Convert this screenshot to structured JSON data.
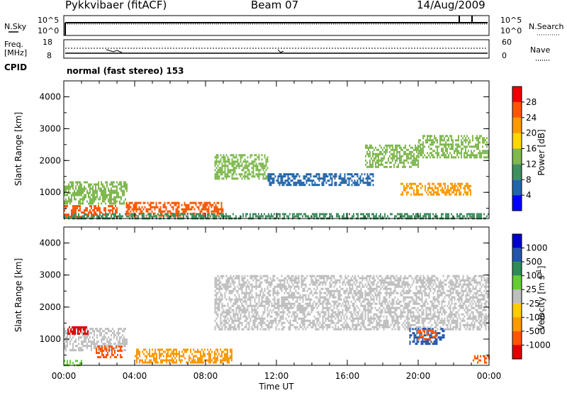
{
  "header": {
    "station": "Pykkvibaer (fitACF)",
    "beam": "Beam 07",
    "date": "14/Aug/2009"
  },
  "summary": {
    "nsky_label": "N.Sky",
    "nsky_ticks": [
      "10^5",
      "10^0"
    ],
    "nsearch_label": "N.Search",
    "nsearch_ticks": [
      "10^5",
      "10^0"
    ],
    "freq_label": "Freq.",
    "freq_unit": "[MHz]",
    "freq_ticks": [
      "18",
      "8"
    ],
    "nave_label": "Nave",
    "nave_ticks": [
      "60",
      "0"
    ],
    "cpid_label": "CPID",
    "cpid_value": "normal (fast stereo) 153"
  },
  "colors": {
    "power_scale": [
      "#0000ff",
      "#2266aa",
      "#3f8f5f",
      "#7fb84f",
      "#ffd700",
      "#ff9900",
      "#ff5500",
      "#ee0000"
    ],
    "velocity_scale": [
      "#e00000",
      "#ff5500",
      "#ff9900",
      "#ffcc00",
      "#bebebe",
      "#66cc33",
      "#2e8b57",
      "#2255aa",
      "#0000cc"
    ],
    "ground_scatter": "#bebebe"
  },
  "chart_data": [
    {
      "type": "heatmap",
      "panel": "power",
      "ylabel": "Slant Range [km]",
      "y_ticks": [
        "1000",
        "2000",
        "3000",
        "4000"
      ],
      "x_ticks": [
        "00:00",
        "04:00",
        "08:00",
        "12:00",
        "16:00",
        "20:00",
        "00:00"
      ],
      "ylim": [
        180,
        4500
      ],
      "colorbar": {
        "label": "Power [dB]",
        "ticks": [
          "4",
          "8",
          "12",
          "16",
          "20",
          "24",
          "28"
        ],
        "range": [
          0,
          30
        ]
      },
      "regions": [
        {
          "t0": 0.0,
          "t1": 3.6,
          "r0": 650,
          "r1": 1350,
          "level": 12
        },
        {
          "t0": 0.0,
          "t1": 3.0,
          "r0": 200,
          "r1": 600,
          "level": 26
        },
        {
          "t0": 3.5,
          "t1": 9.0,
          "r0": 250,
          "r1": 700,
          "level": 24
        },
        {
          "t0": 8.5,
          "t1": 11.5,
          "r0": 1400,
          "r1": 2200,
          "level": 12
        },
        {
          "t0": 11.5,
          "t1": 17.5,
          "r0": 1250,
          "r1": 1600,
          "level": 6
        },
        {
          "t0": 17.0,
          "t1": 20.0,
          "r0": 1800,
          "r1": 2500,
          "level": 14
        },
        {
          "t0": 19.0,
          "t1": 23.0,
          "r0": 900,
          "r1": 1300,
          "level": 20
        },
        {
          "t0": 20.0,
          "t1": 24.0,
          "r0": 2100,
          "r1": 2800,
          "level": 14
        },
        {
          "t0": 0.0,
          "t1": 24.0,
          "r0": 180,
          "r1": 350,
          "level": 8
        }
      ]
    },
    {
      "type": "heatmap",
      "panel": "velocity",
      "ylabel": "Slant Range [km]",
      "y_ticks": [
        "1000",
        "2000",
        "3000",
        "4000"
      ],
      "x_ticks": [
        "00:00",
        "04:00",
        "08:00",
        "12:00",
        "16:00",
        "20:00",
        "00:00"
      ],
      "xlabel": "Time UT",
      "ylim": [
        180,
        4500
      ],
      "colorbar": {
        "label": "Velocity [m s",
        "label_sup": "-1",
        "label_end": "]",
        "ticks": [
          "1000",
          "500",
          "100",
          "25",
          "-25",
          "-100",
          "-500",
          "-1000"
        ]
      },
      "regions": [
        {
          "t0": 0.0,
          "t1": 3.6,
          "r0": 650,
          "r1": 1350,
          "velocity": 0
        },
        {
          "t0": 0.2,
          "t1": 1.4,
          "r0": 1150,
          "r1": 1400,
          "velocity": -600
        },
        {
          "t0": 1.8,
          "t1": 3.3,
          "r0": 450,
          "r1": 800,
          "velocity": -300
        },
        {
          "t0": 4.0,
          "t1": 9.5,
          "r0": 250,
          "r1": 700,
          "velocity": -80
        },
        {
          "t0": 0.0,
          "t1": 1.0,
          "r0": 180,
          "r1": 350,
          "velocity": 60
        },
        {
          "t0": 8.5,
          "t1": 24.0,
          "r0": 1300,
          "r1": 3000,
          "velocity": 0
        },
        {
          "t0": 19.5,
          "t1": 21.5,
          "r0": 850,
          "r1": 1350,
          "velocity": 600
        },
        {
          "t0": 20.0,
          "t1": 21.0,
          "r0": 1000,
          "r1": 1300,
          "velocity": -300
        },
        {
          "t0": 23.0,
          "t1": 24.0,
          "r0": 250,
          "r1": 500,
          "velocity": -300
        }
      ]
    }
  ]
}
